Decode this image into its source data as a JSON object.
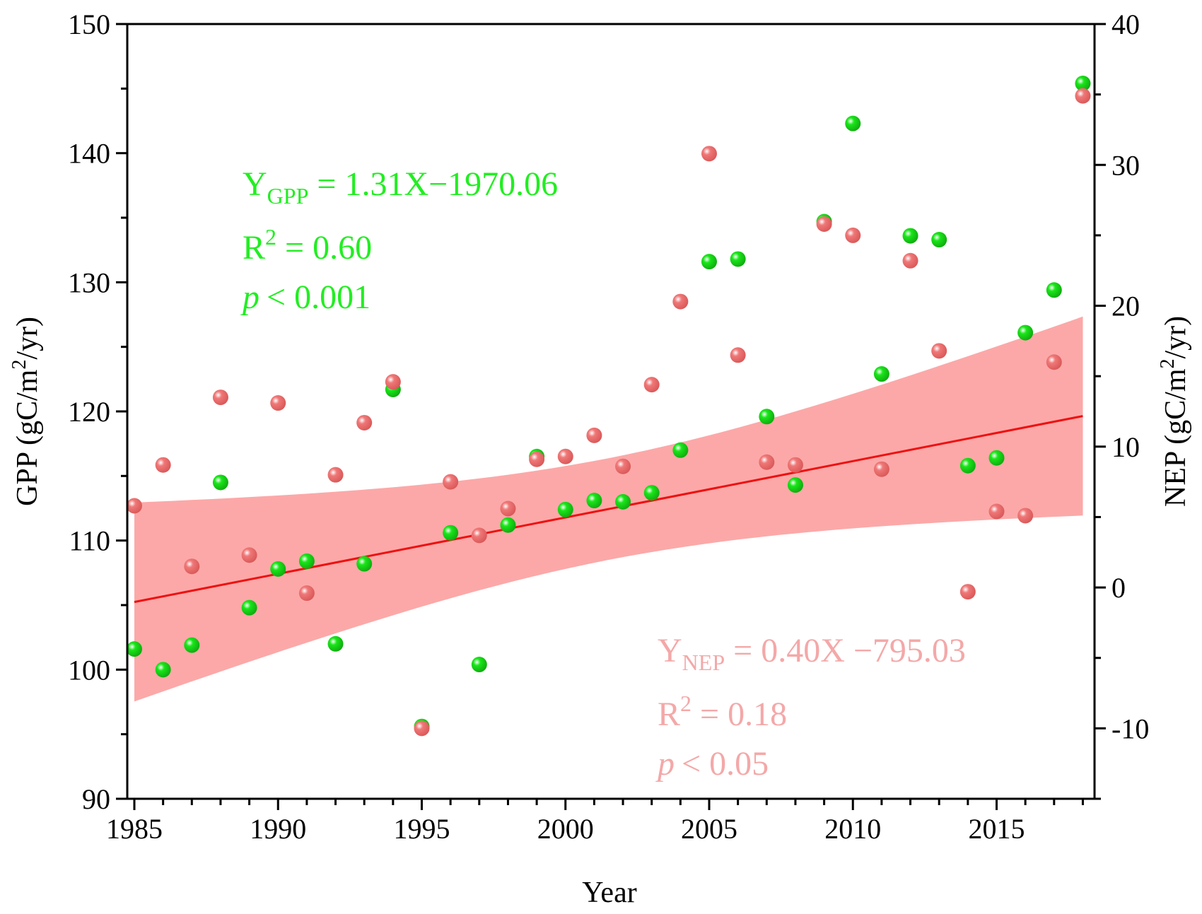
{
  "chart_data": {
    "type": "scatter",
    "xlabel": "Year",
    "ylabel_left": "GPP (gC/m²/yr)",
    "ylabel_right": "NEP (gC/m²/yr)",
    "ylabel_left_parts": {
      "pre": "GPP (gC/m",
      "sup": "2",
      "post": "/yr)"
    },
    "ylabel_right_parts": {
      "pre": "NEP (gC/m",
      "sup": "2",
      "post": "/yr)"
    },
    "xlim": [
      1985,
      2018.5
    ],
    "ylim_left": [
      90,
      150
    ],
    "ylim_right": [
      -15,
      40
    ],
    "xticks": [
      "1985",
      "1990",
      "1995",
      "2000",
      "2005",
      "2010",
      "2015"
    ],
    "yticks_left": [
      "90",
      "100",
      "110",
      "120",
      "130",
      "140",
      "150"
    ],
    "yticks_right": [
      "-10",
      "0",
      "10",
      "20",
      "30",
      "40"
    ],
    "colors": {
      "gpp_point": "#19e619",
      "gpp_point_dark": "#0fa30f",
      "gpp_line": "#22b522",
      "gpp_band": "#7dfaa8",
      "nep_point": "#f07878",
      "nep_line": "#ee1111",
      "nep_band": "#fca8a8",
      "overlap_band": "#d1b07a",
      "gpp_text": "#22ee22",
      "nep_text": "#f4a8a8"
    },
    "series": [
      {
        "name": "GPP",
        "axis": "left",
        "years": [
          1985,
          1986,
          1987,
          1988,
          1989,
          1990,
          1991,
          1992,
          1993,
          1994,
          1995,
          1996,
          1997,
          1998,
          1999,
          2000,
          2001,
          2002,
          2003,
          2004,
          2005,
          2006,
          2007,
          2008,
          2009,
          2010,
          2011,
          2012,
          2013,
          2014,
          2015,
          2016,
          2017,
          2018
        ],
        "values": [
          101.6,
          100,
          101.9,
          114.5,
          104.8,
          107.8,
          108.4,
          102,
          108.2,
          121.7,
          95.6,
          110.6,
          100.4,
          111.2,
          116.5,
          112.4,
          113.1,
          113,
          113.7,
          117,
          131.6,
          131.8,
          119.6,
          114.3,
          134.7,
          142.3,
          122.9,
          133.6,
          133.3,
          115.8,
          116.4,
          126.1,
          129.4,
          145.4
        ],
        "fit": {
          "slope": 1.31,
          "intercept": -1970.06,
          "r2": 0.6,
          "p": "< 0.001"
        }
      },
      {
        "name": "NEP",
        "axis": "right",
        "years": [
          1985,
          1986,
          1987,
          1988,
          1989,
          1990,
          1991,
          1992,
          1993,
          1994,
          1995,
          1996,
          1997,
          1998,
          1999,
          2000,
          2001,
          2002,
          2003,
          2004,
          2005,
          2006,
          2007,
          2008,
          2009,
          2010,
          2011,
          2012,
          2013,
          2014,
          2015,
          2016,
          2017,
          2018
        ],
        "values": [
          5.8,
          8.7,
          1.5,
          13.5,
          2.3,
          13.1,
          -0.4,
          8,
          11.7,
          14.6,
          -10,
          7.5,
          3.7,
          5.6,
          9.1,
          9.3,
          10.8,
          8.6,
          14.4,
          20.3,
          30.8,
          16.5,
          8.9,
          8.7,
          25.8,
          25,
          8.4,
          23.2,
          16.8,
          -0.3,
          5.4,
          5.1,
          16,
          34.9
        ],
        "fit": {
          "slope": 0.4,
          "intercept": -795.03,
          "r2": 0.18,
          "p": "< 0.05"
        }
      }
    ],
    "annotations": {
      "gpp": {
        "eq_Y": "Y",
        "eq_sub": "GPP",
        "eq_rest": " = 1.31X−1970.06",
        "r2_R": "R",
        "r2_sup": "2",
        "r2_rest": " = 0.60",
        "p_p": "p",
        "p_rest": "< 0.001"
      },
      "nep": {
        "eq_Y": "Y",
        "eq_sub": "NEP",
        "eq_rest": " = 0.40X −795.03",
        "r2_R": "R",
        "r2_sup": "2",
        "r2_rest": " = 0.18",
        "p_p": "p",
        "p_rest": "< 0.05"
      }
    }
  }
}
